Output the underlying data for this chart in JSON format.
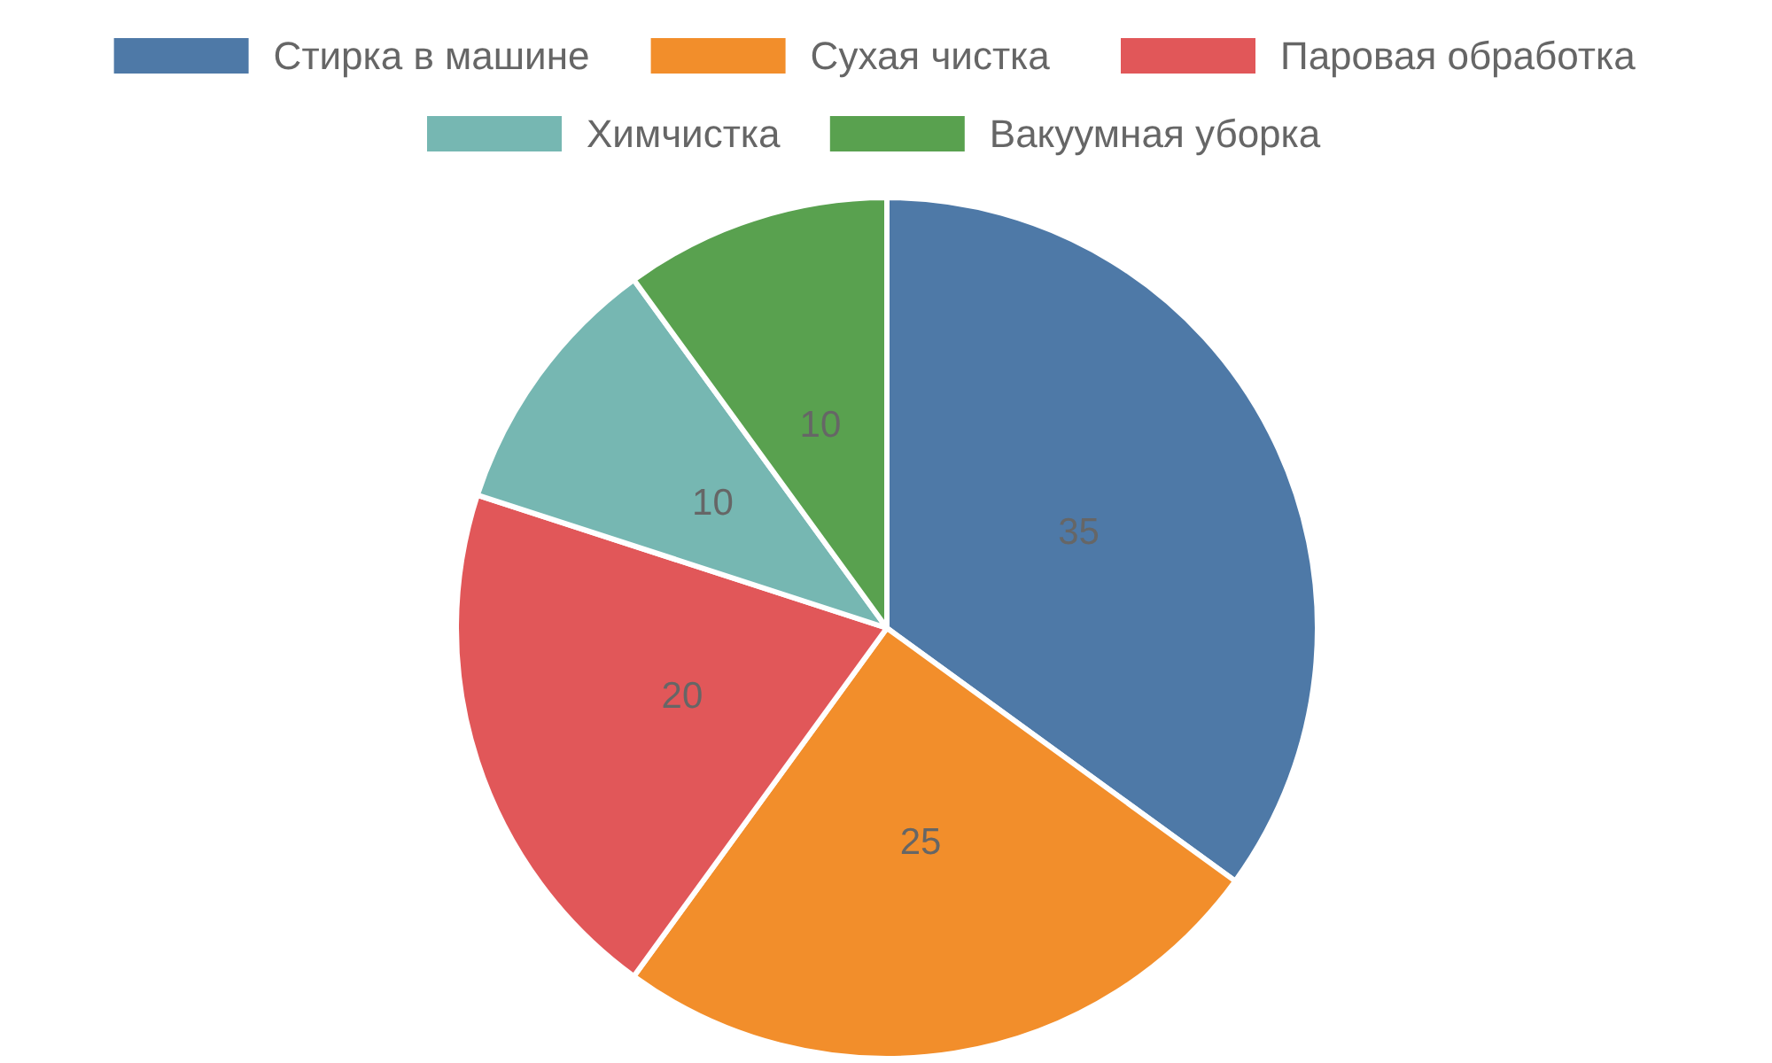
{
  "chart_data": {
    "type": "pie",
    "categories": [
      "Стирка в машине",
      "Сухая чистка",
      "Паровая обработка",
      "Химчистка",
      "Вакуумная уборка"
    ],
    "values": [
      35,
      25,
      20,
      10,
      10
    ],
    "colors": [
      "#4e79a7",
      "#f28e2b",
      "#e15759",
      "#76b7b2",
      "#59a14f"
    ],
    "data_labels": true,
    "legend": "top"
  }
}
